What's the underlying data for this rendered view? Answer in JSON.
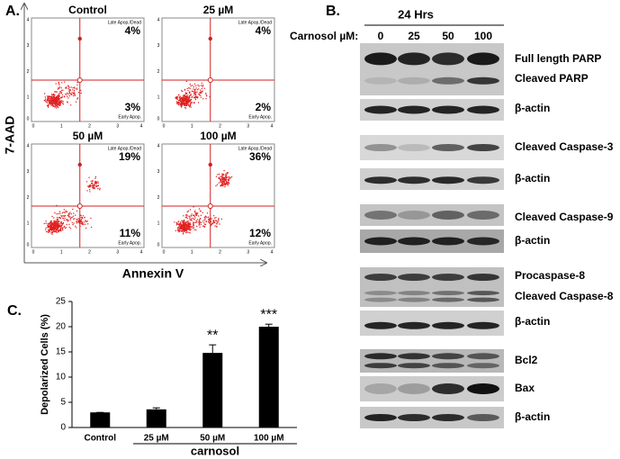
{
  "panel_a": {
    "label": "A.",
    "y_axis_label": "7-AAD",
    "x_axis_label": "Annexin V",
    "axis_ticks": [
      "0",
      "1",
      "2",
      "3",
      "4"
    ],
    "quadrant_labels": {
      "upper_right": "Late Apop./Dead",
      "lower_right": "Early Apop."
    },
    "plots": [
      {
        "title": "Control",
        "upper_right": "4%",
        "lower_right": "3%"
      },
      {
        "title": "25 µM",
        "upper_right": "4%",
        "lower_right": "2%"
      },
      {
        "title": "50 µM",
        "upper_right": "19%",
        "lower_right": "11%"
      },
      {
        "title": "100 µM",
        "upper_right": "36%",
        "lower_right": "12%"
      }
    ]
  },
  "panel_b": {
    "label": "B.",
    "time": "24 Hrs",
    "dose_label": "Carnosol µM:",
    "lanes": [
      "0",
      "25",
      "50",
      "100"
    ],
    "blots": [
      {
        "labels": [
          "Full length PARP",
          "Cleaved  PARP"
        ]
      },
      {
        "labels": [
          "β-actin"
        ]
      },
      {
        "labels": [
          "Cleaved  Caspase-3"
        ]
      },
      {
        "labels": [
          "β-actin"
        ]
      },
      {
        "labels": [
          "Cleaved  Caspase-9"
        ]
      },
      {
        "labels": [
          "β-actin"
        ]
      },
      {
        "labels": [
          "Procaspase-8",
          "Cleaved  Caspase-8"
        ]
      },
      {
        "labels": [
          "β-actin"
        ]
      },
      {
        "labels": [
          "Bcl2"
        ]
      },
      {
        "labels": [
          "Bax"
        ]
      },
      {
        "labels": [
          "β-actin"
        ]
      }
    ]
  },
  "chart_data": {
    "type": "bar",
    "panel_label": "C.",
    "ylabel": "Depolarized Cells (%)",
    "categories": [
      "Control",
      "25 µM",
      "50 µM",
      "100 µM"
    ],
    "values": [
      3,
      3.6,
      14.8,
      20
    ],
    "errors": [
      0,
      0.3,
      1.6,
      0.5
    ],
    "significance": [
      null,
      null,
      "**",
      "***"
    ],
    "group_label": "carnosol",
    "color": "#000000",
    "ylim": [
      0,
      25
    ],
    "yticks": [
      0,
      5,
      10,
      15,
      20,
      25
    ]
  }
}
